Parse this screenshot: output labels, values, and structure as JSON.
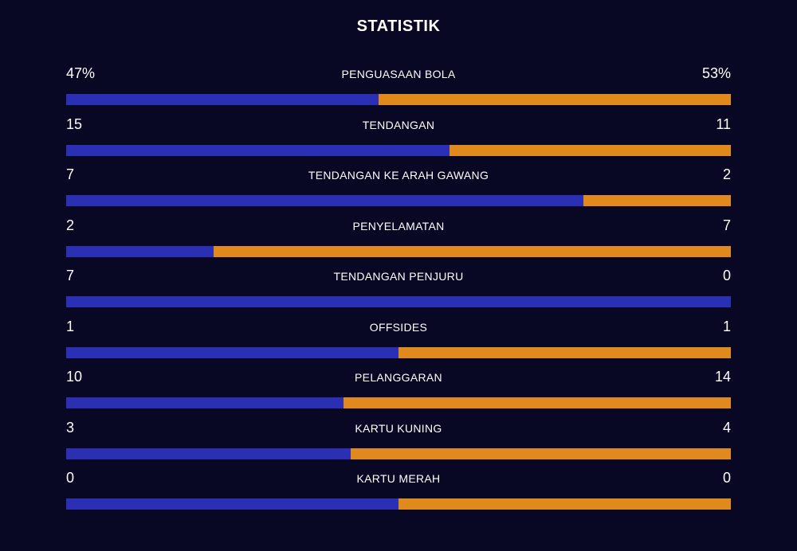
{
  "title": "STATISTIK",
  "colors": {
    "home": "#2a2fb3",
    "away": "#e08a1e",
    "background": "#080724"
  },
  "stats": [
    {
      "label": "PENGUASAAN BOLA",
      "home": "47%",
      "away": "53%",
      "home_value": 47,
      "away_value": 53
    },
    {
      "label": "TENDANGAN",
      "home": "15",
      "away": "11",
      "home_value": 15,
      "away_value": 11
    },
    {
      "label": "TENDANGAN KE ARAH GAWANG",
      "home": "7",
      "away": "2",
      "home_value": 7,
      "away_value": 2
    },
    {
      "label": "PENYELAMATAN",
      "home": "2",
      "away": "7",
      "home_value": 2,
      "away_value": 7
    },
    {
      "label": "TENDANGAN PENJURU",
      "home": "7",
      "away": "0",
      "home_value": 7,
      "away_value": 0
    },
    {
      "label": "OFFSIDES",
      "home": "1",
      "away": "1",
      "home_value": 1,
      "away_value": 1
    },
    {
      "label": "PELANGGARAN",
      "home": "10",
      "away": "14",
      "home_value": 10,
      "away_value": 14
    },
    {
      "label": "KARTU KUNING",
      "home": "3",
      "away": "4",
      "home_value": 3,
      "away_value": 4
    },
    {
      "label": "KARTU MERAH",
      "home": "0",
      "away": "0",
      "home_value": 0,
      "away_value": 0
    }
  ]
}
